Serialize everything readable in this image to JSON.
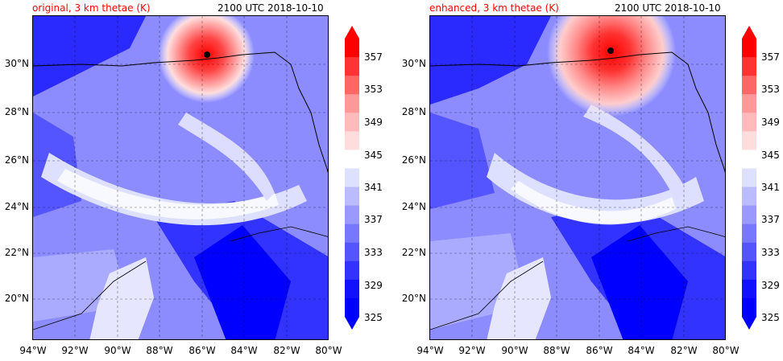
{
  "panels": [
    {
      "title_left": "original, 3 km thetae (K)",
      "title_right": "2100 UTC 2018-10-10"
    },
    {
      "title_left": "enhanced, 3 km thetae (K)",
      "title_right": "2100 UTC 2018-10-10"
    }
  ],
  "axes": {
    "lat_labels": [
      "30°N",
      "28°N",
      "26°N",
      "24°N",
      "22°N",
      "20°N"
    ],
    "lon_labels": [
      "94°W",
      "92°W",
      "90°W",
      "88°W",
      "86°W",
      "84°W",
      "82°W",
      "80°W"
    ]
  },
  "colorbar": {
    "labels": [
      "357",
      "353",
      "349",
      "345",
      "341",
      "337",
      "333",
      "329",
      "325"
    ],
    "colors": [
      "#ff0000",
      "#ff3333",
      "#ff6666",
      "#ff9999",
      "#ffbbbb",
      "#ffdddd",
      "#ffffff",
      "#dde0ff",
      "#bbbbff",
      "#9999ff",
      "#7777ff",
      "#5555ff",
      "#3333ff",
      "#1111ff",
      "#0000ff"
    ],
    "extend_top": "#ff0000",
    "extend_bottom": "#0000ff"
  },
  "colors": {
    "title_left": "#ff0000",
    "ocean_base": "#8c8cff",
    "deep_blue": "#0000ff",
    "warm": "#ff0000"
  }
}
